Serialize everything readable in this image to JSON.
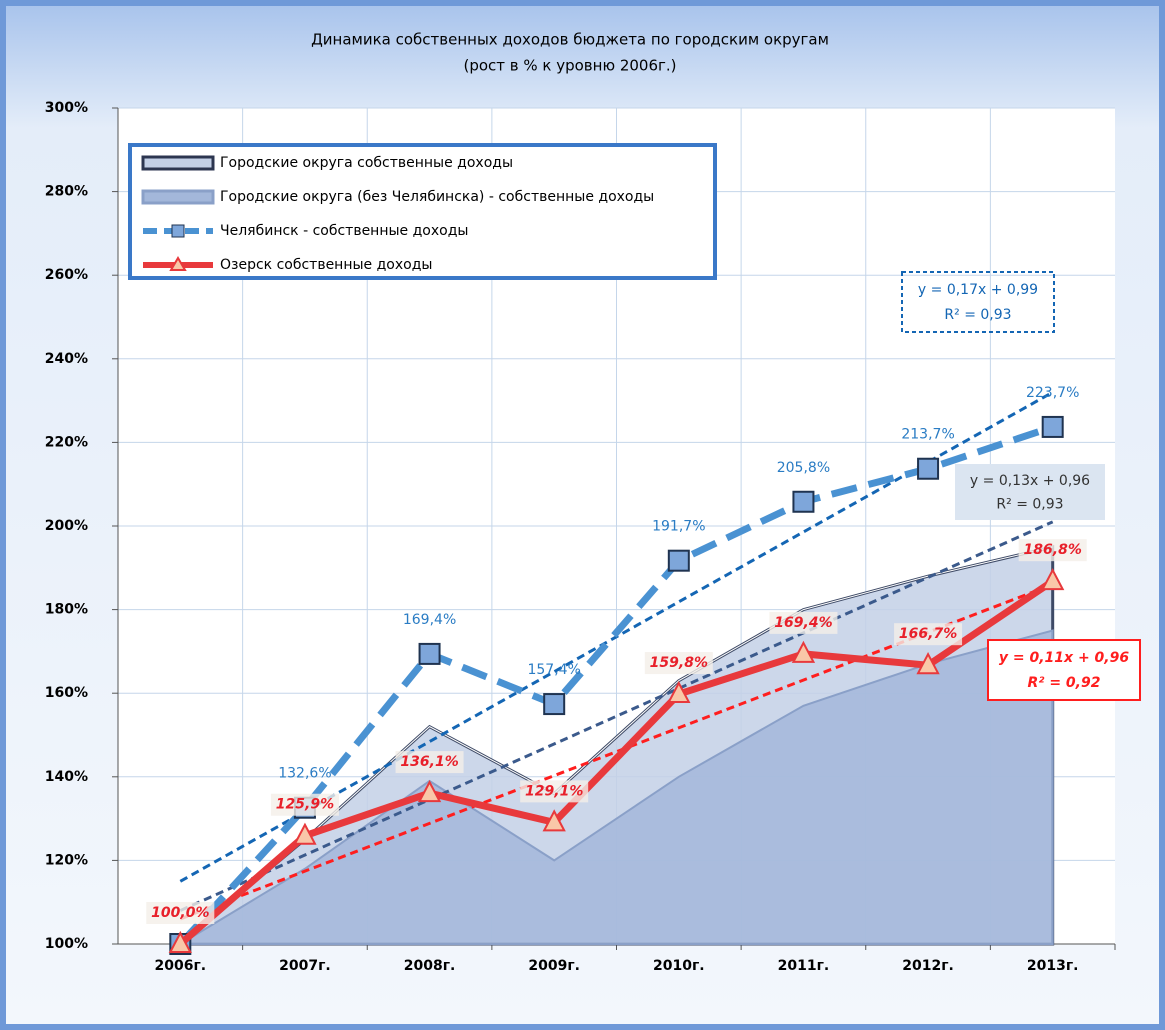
{
  "chart_data": {
    "type": "line",
    "title": "Динамика  собственных доходов бюджета   по городским округам",
    "subtitle": "(рост   в % к уровню 2006г.)",
    "categories": [
      "2006г.",
      "2007г.",
      "2008г.",
      "2009г.",
      "2010г.",
      "2011г.",
      "2012г.",
      "2013г."
    ],
    "ylim": [
      100,
      300
    ],
    "yticks": [
      {
        "value": 100,
        "label": "100%"
      },
      {
        "value": 120,
        "label": "120%"
      },
      {
        "value": 140,
        "label": "140%"
      },
      {
        "value": 160,
        "label": "160%"
      },
      {
        "value": 180,
        "label": "180%"
      },
      {
        "value": 200,
        "label": "200%"
      },
      {
        "value": 220,
        "label": "220%"
      },
      {
        "value": 240,
        "label": "240%"
      },
      {
        "value": 260,
        "label": "260%"
      },
      {
        "value": 280,
        "label": "280%"
      },
      {
        "value": 300,
        "label": "300%"
      }
    ],
    "grid": true,
    "legend": "upper left",
    "series": [
      {
        "name": "Городские округа  собственные доходы",
        "kind": "area",
        "color": "#c3d0e6",
        "values": [
          100,
          125,
          152,
          136,
          163,
          180,
          188,
          195
        ]
      },
      {
        "name": "Городские округа (без Челябинска) - собственные доходы",
        "kind": "area",
        "color": "#a3b7da",
        "values": [
          100,
          118,
          139,
          120,
          140,
          157,
          167,
          175
        ]
      },
      {
        "name": "Челябинск - собственные доходы",
        "kind": "dashed",
        "color": "#4a92d2",
        "values": [
          100,
          132.6,
          169.4,
          157.4,
          191.7,
          205.8,
          213.7,
          223.7
        ],
        "value_labels": [
          null,
          "132,6%",
          "169,4%",
          "157,4%",
          "191,7%",
          "205,8%",
          "213,7%",
          "223,7%"
        ]
      },
      {
        "name": "Озерск собственные доходы",
        "kind": "solid",
        "color": "#e8393c",
        "values": [
          100,
          125.9,
          136.1,
          129.1,
          159.8,
          169.4,
          166.7,
          186.8
        ],
        "value_labels": [
          "100,0%",
          "125,9%",
          "136,1%",
          "129,1%",
          "159,8%",
          "169,4%",
          "166,7%",
          "186,8%"
        ]
      }
    ],
    "trendlines": [
      {
        "color": "#1466b4",
        "values": [
          115,
          232
        ],
        "equation": "y = 0,17x + 0,99",
        "r2": "R² = 0,93"
      },
      {
        "color": "#3b5a8c",
        "values": [
          108,
          201
        ],
        "equation": "y = 0,13x + 0,96",
        "r2": "R² = 0,93"
      },
      {
        "color": "#ff1e1e",
        "values": [
          106,
          186
        ],
        "equation": "y = 0,11x + 0,96",
        "r2": "R² = 0,92"
      }
    ]
  }
}
